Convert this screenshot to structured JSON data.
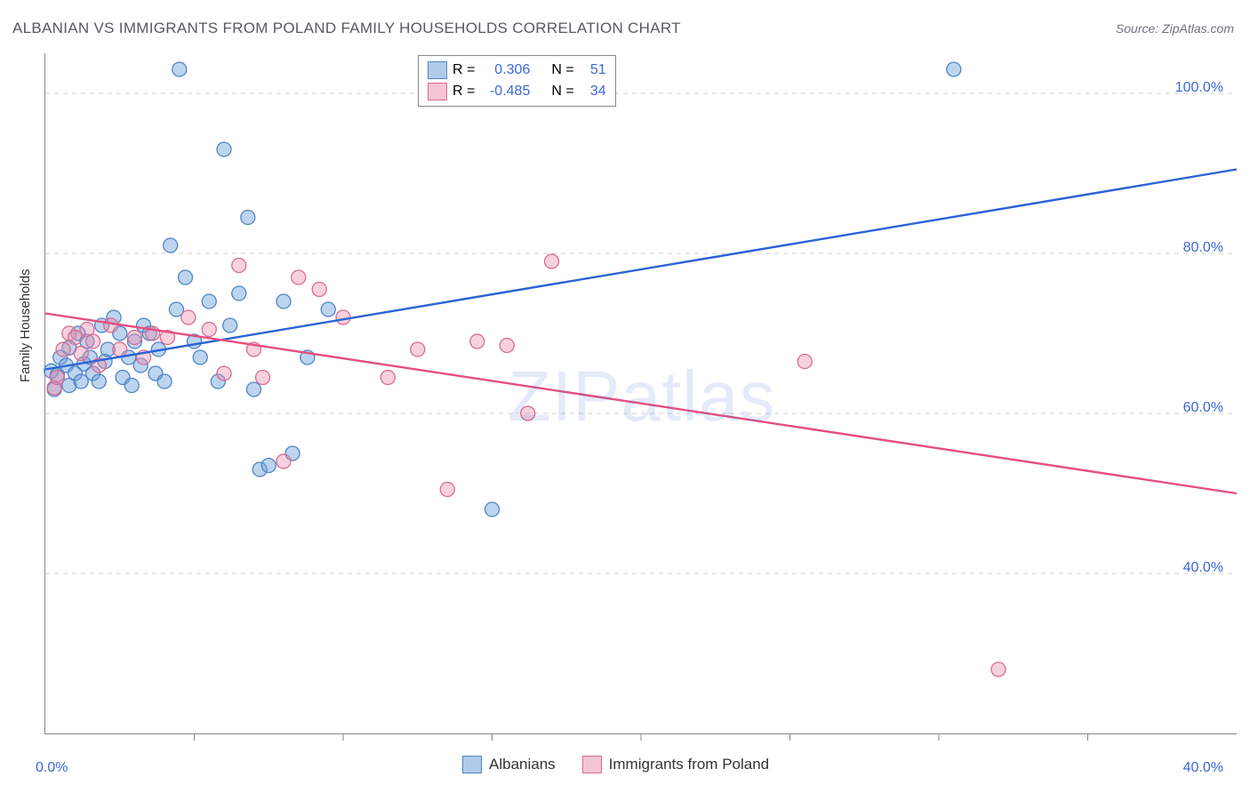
{
  "title": "ALBANIAN VS IMMIGRANTS FROM POLAND FAMILY HOUSEHOLDS CORRELATION CHART",
  "source": "Source: ZipAtlas.com",
  "ylabel": "Family Households",
  "watermark": "ZIPatlas",
  "chart": {
    "type": "scatter",
    "xlim": [
      0,
      40
    ],
    "ylim": [
      20,
      105
    ],
    "ytick_labels": [
      "40.0%",
      "60.0%",
      "80.0%",
      "100.0%"
    ],
    "ytick_values": [
      40,
      60,
      80,
      100
    ],
    "xtick_labels": [
      "0.0%",
      "40.0%"
    ],
    "xtick_values": [
      0,
      40
    ],
    "xtick_minor": [
      5,
      10,
      15,
      20,
      25,
      30,
      35
    ],
    "background_color": "#ffffff",
    "grid_color": "#cfcfcf",
    "axis_color": "#888888",
    "marker_radius": 8,
    "marker_stroke_width": 1.3,
    "line_width": 2.4,
    "series": [
      {
        "name": "Albanians",
        "fill": "rgba(108,160,220,0.45)",
        "stroke": "#4f85c4",
        "line_color": "#2a63d6",
        "R": "0.306",
        "N": "51",
        "regression": {
          "x1": 0,
          "y1": 65.5,
          "x2": 40,
          "y2": 90.5
        },
        "points": [
          [
            0.2,
            65.3
          ],
          [
            0.3,
            63.0
          ],
          [
            0.4,
            64.8
          ],
          [
            0.5,
            67.0
          ],
          [
            0.7,
            66.0
          ],
          [
            0.8,
            68.2
          ],
          [
            0.8,
            63.5
          ],
          [
            1.0,
            65.0
          ],
          [
            1.1,
            70.0
          ],
          [
            1.2,
            64.0
          ],
          [
            1.3,
            66.2
          ],
          [
            1.4,
            69.0
          ],
          [
            1.5,
            67.0
          ],
          [
            1.6,
            65.0
          ],
          [
            1.8,
            64.0
          ],
          [
            1.9,
            71.0
          ],
          [
            2.0,
            66.5
          ],
          [
            2.1,
            68.0
          ],
          [
            2.3,
            72.0
          ],
          [
            2.5,
            70.0
          ],
          [
            2.6,
            64.5
          ],
          [
            2.8,
            67.0
          ],
          [
            2.9,
            63.5
          ],
          [
            3.0,
            69.0
          ],
          [
            3.2,
            66.0
          ],
          [
            3.3,
            71.0
          ],
          [
            3.5,
            70.0
          ],
          [
            3.7,
            65.0
          ],
          [
            3.8,
            68.0
          ],
          [
            4.0,
            64.0
          ],
          [
            4.2,
            81.0
          ],
          [
            4.4,
            73.0
          ],
          [
            4.5,
            103.0
          ],
          [
            4.7,
            77.0
          ],
          [
            5.0,
            69.0
          ],
          [
            5.2,
            67.0
          ],
          [
            5.5,
            74.0
          ],
          [
            5.8,
            64.0
          ],
          [
            6.0,
            93.0
          ],
          [
            6.2,
            71.0
          ],
          [
            6.5,
            75.0
          ],
          [
            6.8,
            84.5
          ],
          [
            7.0,
            63.0
          ],
          [
            7.2,
            53.0
          ],
          [
            7.5,
            53.5
          ],
          [
            8.0,
            74.0
          ],
          [
            8.3,
            55.0
          ],
          [
            8.8,
            67.0
          ],
          [
            9.5,
            73.0
          ],
          [
            15.0,
            48.0
          ],
          [
            30.5,
            103.0
          ]
        ]
      },
      {
        "name": "Immigrants from Poland",
        "fill": "rgba(236,140,170,0.40)",
        "stroke": "#d96a93",
        "line_color": "#e54f7e",
        "R": "-0.485",
        "N": "34",
        "regression": {
          "x1": 0,
          "y1": 72.5,
          "x2": 40,
          "y2": 50.0
        },
        "points": [
          [
            0.3,
            63.2
          ],
          [
            0.4,
            64.5
          ],
          [
            0.6,
            68.0
          ],
          [
            0.8,
            70.0
          ],
          [
            1.0,
            69.5
          ],
          [
            1.2,
            67.5
          ],
          [
            1.4,
            70.5
          ],
          [
            1.6,
            69.0
          ],
          [
            1.8,
            66.0
          ],
          [
            2.2,
            71.0
          ],
          [
            2.5,
            68.0
          ],
          [
            3.0,
            69.5
          ],
          [
            3.3,
            67.0
          ],
          [
            3.6,
            70.0
          ],
          [
            4.1,
            69.5
          ],
          [
            4.8,
            72.0
          ],
          [
            5.5,
            70.5
          ],
          [
            6.0,
            65.0
          ],
          [
            6.5,
            78.5
          ],
          [
            7.0,
            68.0
          ],
          [
            7.3,
            64.5
          ],
          [
            8.0,
            54.0
          ],
          [
            8.5,
            77.0
          ],
          [
            9.2,
            75.5
          ],
          [
            10.0,
            72.0
          ],
          [
            11.5,
            64.5
          ],
          [
            12.5,
            68.0
          ],
          [
            13.5,
            50.5
          ],
          [
            14.5,
            69.0
          ],
          [
            15.5,
            68.5
          ],
          [
            16.2,
            60.0
          ],
          [
            17.0,
            79.0
          ],
          [
            25.5,
            66.5
          ],
          [
            32.0,
            28.0
          ]
        ]
      }
    ]
  },
  "legend_top": {
    "rows": [
      {
        "swatch": "blue",
        "Rlabel": "R =",
        "Rval": "0.306",
        "Nlabel": "N =",
        "Nval": "51"
      },
      {
        "swatch": "pink",
        "Rlabel": "R =",
        "Rval": "-0.485",
        "Nlabel": "N =",
        "Nval": "34"
      }
    ]
  },
  "legend_bottom": {
    "items": [
      {
        "swatch": "blue",
        "label": "Albanians"
      },
      {
        "swatch": "pink",
        "label": "Immigrants from Poland"
      }
    ]
  }
}
